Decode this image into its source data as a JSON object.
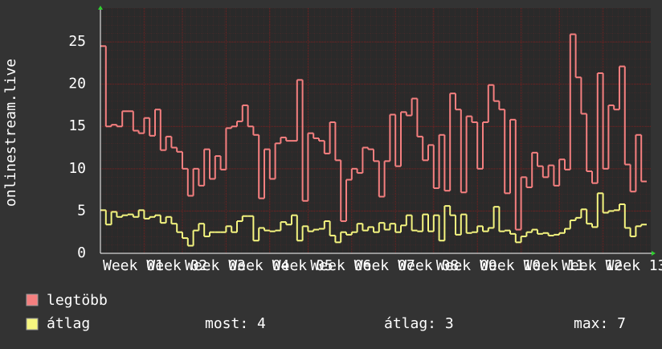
{
  "chart_data": {
    "type": "step-line",
    "ylabel": "onlinestream.live",
    "ylim": [
      0,
      29
    ],
    "yticks": [
      0,
      5,
      10,
      15,
      20,
      25
    ],
    "grid": true,
    "categories": [
      "Week 01",
      null,
      null,
      null,
      null,
      null,
      null,
      null,
      "Week 02",
      null,
      null,
      null,
      null,
      null,
      null,
      "Week 03",
      null,
      null,
      null,
      null,
      null,
      null,
      null,
      "Week 04",
      null,
      null,
      null,
      null,
      null,
      null,
      null,
      "Week 05",
      null,
      null,
      null,
      null,
      null,
      null,
      "Week 06",
      null,
      null,
      null,
      null,
      null,
      null,
      null,
      "Week 07",
      null,
      null,
      null,
      null,
      null,
      null,
      null,
      "Week 08",
      null,
      null,
      null,
      null,
      null,
      null,
      "Week 09",
      null,
      null,
      null,
      null,
      null,
      null,
      null,
      "Week 10",
      null,
      null,
      null,
      null,
      null,
      null,
      null,
      "Week 11",
      null,
      null,
      null,
      null,
      null,
      null,
      "Week 12",
      null,
      null,
      null,
      null,
      null,
      null,
      null,
      "Week 13",
      null,
      null,
      null,
      null,
      null,
      null,
      null
    ],
    "series": [
      {
        "name": "legtöbb",
        "color": "#f57f7f",
        "values": [
          24.5,
          15,
          15.2,
          15,
          16.8,
          16.8,
          14.5,
          14.2,
          16,
          13.9,
          17,
          12.2,
          13.8,
          12.5,
          12,
          10,
          6.8,
          10,
          8,
          12.3,
          8.8,
          11.5,
          9.9,
          14.8,
          15,
          15.6,
          17.5,
          15,
          14,
          6.5,
          12.3,
          8.8,
          13,
          13.7,
          13.3,
          13.3,
          20.5,
          6.2,
          14.2,
          13.6,
          13.3,
          11.8,
          15.5,
          11,
          3.8,
          8.7,
          10,
          9.5,
          12.5,
          12.3,
          10.9,
          6.7,
          10.9,
          16.4,
          10.3,
          16.7,
          16.3,
          18.3,
          13.8,
          11,
          12.8,
          7.7,
          14,
          7.4,
          18.9,
          17,
          7.2,
          16.2,
          15.5,
          10,
          15.5,
          19.9,
          18,
          17,
          7.1,
          15.8,
          2.8,
          9,
          7.8,
          11.9,
          10.3,
          9,
          10.4,
          8,
          11.1,
          9.9,
          25.9,
          20.8,
          16.5,
          9.7,
          8.3,
          21.3,
          10,
          17.5,
          17,
          22.1,
          10.5,
          7.3,
          14,
          8.5
        ]
      },
      {
        "name": "átlag",
        "color": "#f5f57f",
        "values": [
          5.1,
          3.4,
          4.9,
          4.3,
          4.5,
          4.6,
          4.3,
          5.1,
          4.1,
          4.3,
          4.5,
          3.6,
          4.3,
          3.5,
          2.5,
          1.8,
          0.9,
          2.7,
          3.5,
          2.0,
          2.5,
          2.5,
          2.5,
          3.2,
          2.5,
          3.8,
          4.4,
          4.4,
          1.5,
          3.0,
          2.7,
          2.6,
          2.7,
          3.7,
          3.4,
          4.5,
          1.5,
          3.2,
          2.6,
          2.8,
          2.9,
          3.8,
          2.1,
          1.3,
          2.5,
          2.2,
          2.5,
          3.5,
          2.7,
          3.1,
          2.5,
          3.6,
          2.8,
          3.5,
          2.5,
          3.3,
          4.5,
          2.7,
          2.6,
          4.6,
          2.6,
          4.5,
          1.5,
          5.6,
          4.5,
          2.2,
          4.6,
          2.4,
          2.5,
          3.2,
          2.6,
          3.0,
          5.5,
          2.6,
          2.7,
          2.3,
          1.3,
          2.0,
          2.5,
          2.8,
          2.3,
          2.4,
          2.1,
          2.2,
          2.4,
          2.9,
          3.9,
          4.2,
          5.2,
          3.5,
          3.1,
          7.1,
          4.8,
          5.0,
          5.1,
          5.8,
          3.0,
          2.0,
          3.2,
          3.4
        ]
      }
    ],
    "legend_stats": [
      "most: 4",
      "átlag: 3",
      "max: 7"
    ]
  }
}
